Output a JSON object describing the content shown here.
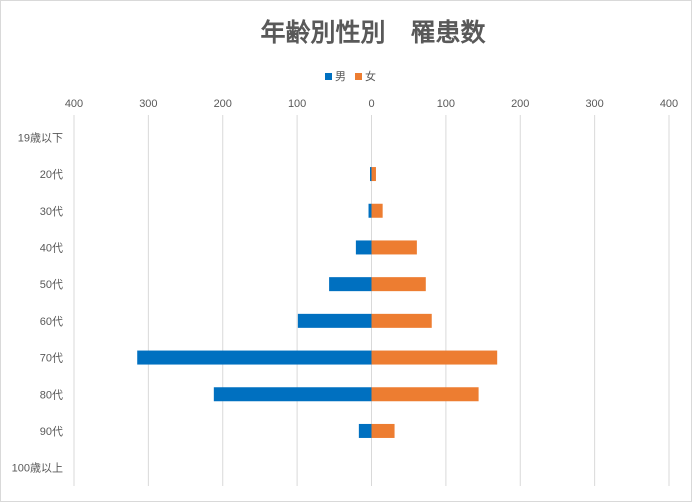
{
  "chart_data": {
    "type": "bar",
    "orientation": "horizontal",
    "title": "年齢別性別　罹患数",
    "categories": [
      "19歳以下",
      "20代",
      "30代",
      "40代",
      "50代",
      "60代",
      "70代",
      "80代",
      "90代",
      "100歳以上"
    ],
    "series": [
      {
        "name": "男",
        "color": "#0070c0",
        "direction": "left",
        "values": [
          0,
          2,
          4,
          21,
          57,
          99,
          315,
          212,
          17,
          0
        ]
      },
      {
        "name": "女",
        "color": "#ed7d31",
        "direction": "right",
        "values": [
          0,
          6,
          15,
          61,
          73,
          81,
          169,
          144,
          31,
          0
        ]
      }
    ],
    "xlim": [
      -400,
      400
    ],
    "x_tick_values": [
      -400,
      -300,
      -200,
      -100,
      0,
      100,
      200,
      300,
      400
    ],
    "x_tick_labels": [
      "400",
      "300",
      "200",
      "100",
      "0",
      "100",
      "200",
      "300",
      "400"
    ],
    "legend_position": "top",
    "grid": "vertical",
    "xaxis_position": "top"
  }
}
